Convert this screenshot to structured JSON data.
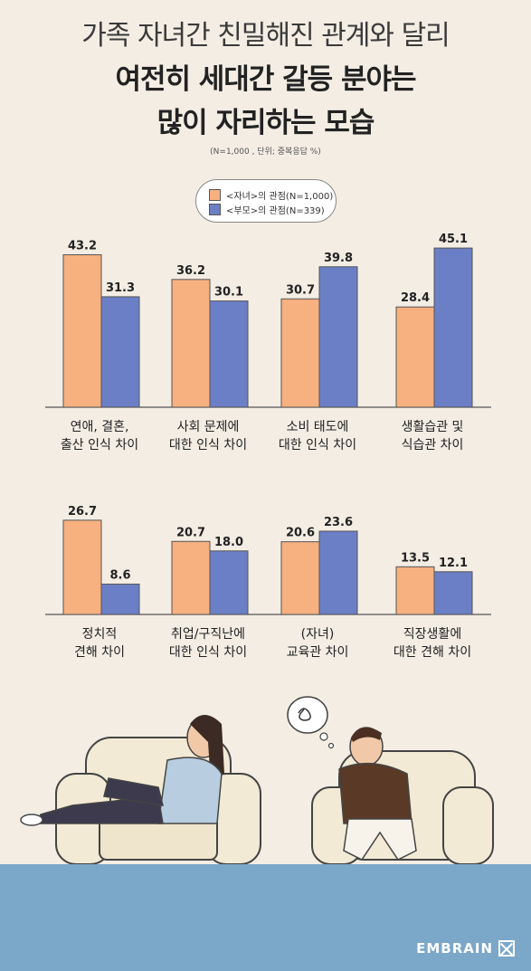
{
  "title": {
    "line1": "가족 자녀간 친밀해진 관계와 달리",
    "line2": "여전히 세대간 갈등 분야는",
    "line3": "많이 자리하는 모습"
  },
  "note": "(N=1,000 , 단위; 중복응답 %)",
  "legend": {
    "child": "<자녀>의 관점(N=1,000)",
    "parent": "<부모>의 관점(N=339)"
  },
  "brand": "EMBRAIN",
  "colors": {
    "child": "#f7b07f",
    "parent": "#6b7fc6",
    "floor": "#7ba7c9"
  },
  "chart_data": {
    "type": "bar",
    "ylim": [
      0,
      50
    ],
    "grid": false,
    "legend_position": "top-center",
    "categories": [
      [
        "연애, 결혼,",
        "출산 인식 차이"
      ],
      [
        "사회 문제에",
        "대한 인식 차이"
      ],
      [
        "소비 태도에",
        "대한 인식 차이"
      ],
      [
        "생활습관 및",
        "식습관 차이"
      ],
      [
        "정치적",
        "견해 차이"
      ],
      [
        "취업/구직난에",
        "대한 인식 차이"
      ],
      [
        "(자녀)",
        "교육관 차이"
      ],
      [
        "직장생활에",
        "대한 견해 차이"
      ]
    ],
    "series": [
      {
        "name": "<자녀>의 관점(N=1,000)",
        "values": [
          43.2,
          36.2,
          30.7,
          28.4,
          26.7,
          20.7,
          20.6,
          13.5
        ]
      },
      {
        "name": "<부모>의 관점(N=339)",
        "values": [
          31.3,
          30.1,
          39.8,
          45.1,
          8.6,
          18.0,
          23.6,
          12.1
        ]
      }
    ],
    "value_labels": [
      [
        "43.2",
        "36.2",
        "30.7",
        "28.4",
        "26.7",
        "20.7",
        "20.6",
        "13.5"
      ],
      [
        "31.3",
        "30.1",
        "39.8",
        "45.1",
        "8.6",
        "18.0",
        "23.6",
        "12.1"
      ]
    ]
  }
}
